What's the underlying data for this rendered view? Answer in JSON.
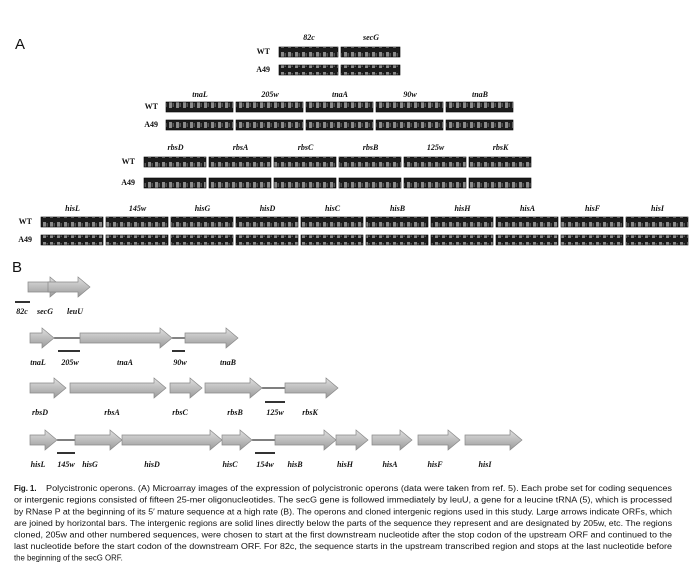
{
  "panel_a": {
    "label": "A",
    "rows": [
      {
        "genes": [
          "82c",
          "secG"
        ],
        "wt": "WT",
        "a49": "A49"
      },
      {
        "genes": [
          "tnaL",
          "205w",
          "tnaA",
          "90w",
          "tnaB"
        ],
        "wt": "WT",
        "a49": "A49"
      },
      {
        "genes": [
          "rbsD",
          "rbsA",
          "rbsC",
          "rbsB",
          "125w",
          "rbsK"
        ],
        "wt": "WT",
        "a49": "A49"
      },
      {
        "genes": [
          "hisL",
          "145w",
          "hisG",
          "hisD",
          "hisC",
          "hisB",
          "hisH",
          "hisA",
          "hisF",
          "hisI"
        ],
        "wt": "WT",
        "a49": "A49"
      }
    ]
  },
  "panel_b": {
    "label": "B",
    "rows": [
      {
        "labels": [
          "82c",
          "secG",
          "leuU"
        ]
      },
      {
        "labels": [
          "tnaL",
          "205w",
          "tnaA",
          "90w",
          "tnaB"
        ]
      },
      {
        "labels": [
          "rbsD",
          "rbsA",
          "rbsC",
          "rbsB",
          "125w",
          "rbsK"
        ]
      },
      {
        "labels": [
          "hisL",
          "145w",
          "hisG",
          "hisD",
          "hisC",
          "154w",
          "hisB",
          "hisH",
          "hisA",
          "hisF",
          "hisI"
        ]
      }
    ]
  },
  "caption": {
    "lead": "Fig. 1.",
    "lines": [
      "Polycistronic operons. (A) Microarray images of the expression of polycistronic operons (data were taken from ref. 5). Each probe set for coding sequences",
      "or intergenic regions consisted of fifteen 25-mer oligonucleotides. The secG gene is followed immediately by leuU, a gene for a leucine tRNA (5), which is processed",
      "by RNase P at the beginning of its 5′ mature sequence at a high rate (B). The operons and cloned intergenic regions used in this study. Large arrows indicate ORFs, which",
      "are joined by horizontal bars. The intergenic regions are solid lines directly below the parts of the sequence they represent and are designated by 205w, etc. The regions",
      "cloned, 205w and other numbered sequences, were chosen to start at the first downstream nucleotide after the stop codon of the upstream ORF and continued to the",
      "last nucleotide before the start codon of the downstream ORF. For 82c, the sequence starts in the upstream transcribed region and stops at the last nucleotide before",
      "the beginning of the secG ORF."
    ]
  }
}
